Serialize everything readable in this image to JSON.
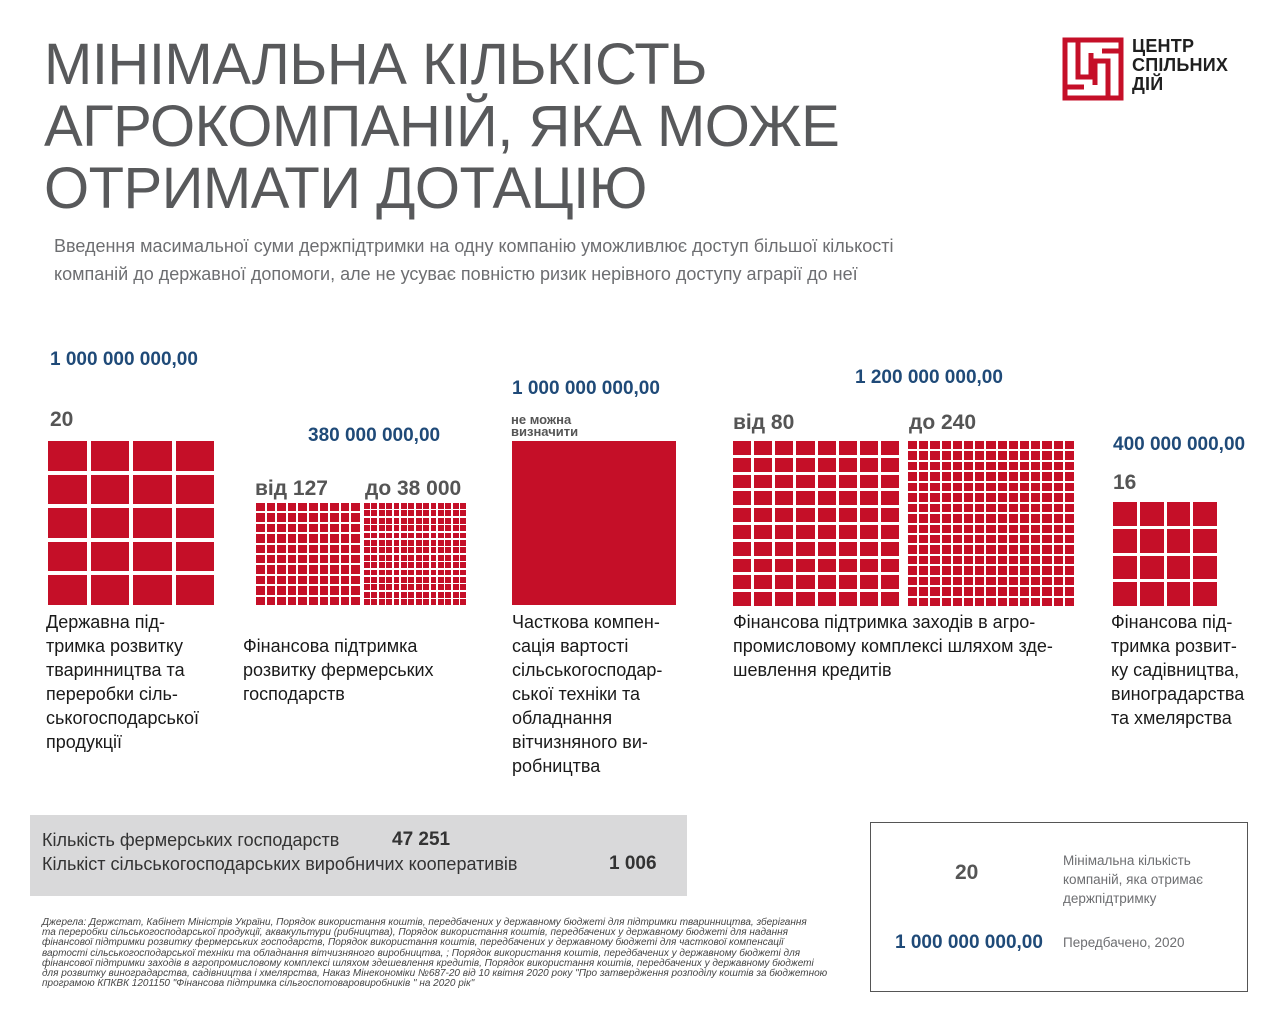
{
  "title_lines": [
    "МІНІМАЛЬНА КІЛЬКІСТЬ",
    "АГРОКОМПАНІЙ, ЯКА МОЖЕ",
    "ОТРИМАТИ ДОТАЦІЮ"
  ],
  "subtitle_lines": [
    "Введення масимальної суми держпідтримки на одну компанію уможливлює доступ більшої кількості",
    "компаній до державної допомоги, але не усуває повністю ризик нерівного доступу аграрії до неї"
  ],
  "logo": {
    "lines": [
      "ЦЕНТР",
      "СПІЛЬНИХ",
      "ДІЙ"
    ],
    "color": "#c50f28"
  },
  "colors": {
    "block": "#c50f28",
    "money": "#1f4a78",
    "title": "#58595b"
  },
  "programs": [
    {
      "amount": "1 000 000 000,00",
      "count": "20",
      "description_lines": [
        "Державна під-",
        "тримка розвитку",
        "тваринництва та",
        "переробки сіль-",
        "ськогосподарської",
        "продукції"
      ]
    },
    {
      "amount": "380 000 000,00",
      "count_from": "від 127",
      "count_to": "до 38 000",
      "description_lines": [
        "Фінансова підтримка",
        "розвитку фермерських",
        "господарств"
      ]
    },
    {
      "amount": "1 000 000 000,00",
      "count_lines": [
        "не можна",
        "визначити"
      ],
      "description_lines": [
        "Часткова компен-",
        "сація вартості",
        "сільськогосподар-",
        "ської техніки та",
        "обладнання",
        "вітчизняного ви-",
        "робництва"
      ]
    },
    {
      "amount": "1 200 000 000,00",
      "count_from": "від 80",
      "count_to": "до 240",
      "description_lines": [
        "Фінансова підтримка заходів в агро-",
        "промисловому комплексі шляхом здe-",
        "шевлення кредитів"
      ]
    },
    {
      "amount": "400 000 000,00",
      "count": "16",
      "description_lines": [
        "Фінансова під-",
        "тримка розвит-",
        "ку садівництва,",
        "виноградарства",
        "та хмелярства"
      ]
    }
  ],
  "stats": [
    {
      "label": "Кількість фермерських господарств",
      "value": "47 251"
    },
    {
      "label": "Кількіст сільськогосподарських виробничих кооперативів",
      "value": "1 006"
    }
  ],
  "sources_lines": [
    "Джерела: Держстат, Кабінет Міністрів України, Порядок використання коштів, передбачених у державному бюджеті для підтримки тваринництва, зберігання",
    "та переробки сільськогосподарської продукції, аквакультури (рибництва), Порядок використання коштів, передбачених у державному бюджеті для надання",
    "фінансової підтримки розвитку фермерських господарств, Порядок використання коштів, передбачених у державному бюджеті для часткової компенсації",
    "вартості сільськогосподарської техніки та обладнання вітчизняного виробництва, ; Порядок використання коштів, передбачених у державному бюджеті для",
    "фінансової підтримки заходів в агропромисловому комплексі шляхом здешевлення кредитів, Порядок використання коштів, передбачених у державному бюджеті",
    "для розвитку виноградарства, садівництва і хмелярства, Наказ Мінекономіки №687-20 від 10 квітня 2020 року \"Про затвердження розподілу коштів за бюджетною",
    "програмою КПКВК 1201150 \"Фінансова підтримка сільгоспотоваровиробників \" на 2020 рік\""
  ],
  "legend": {
    "count_value": "20",
    "count_label_lines": [
      "Мінімальна кількість",
      "компаній, яка отримає",
      "держпідтримку"
    ],
    "amount_value": "1 000 000 000,00",
    "amount_label": "Передбачено, 2020"
  }
}
